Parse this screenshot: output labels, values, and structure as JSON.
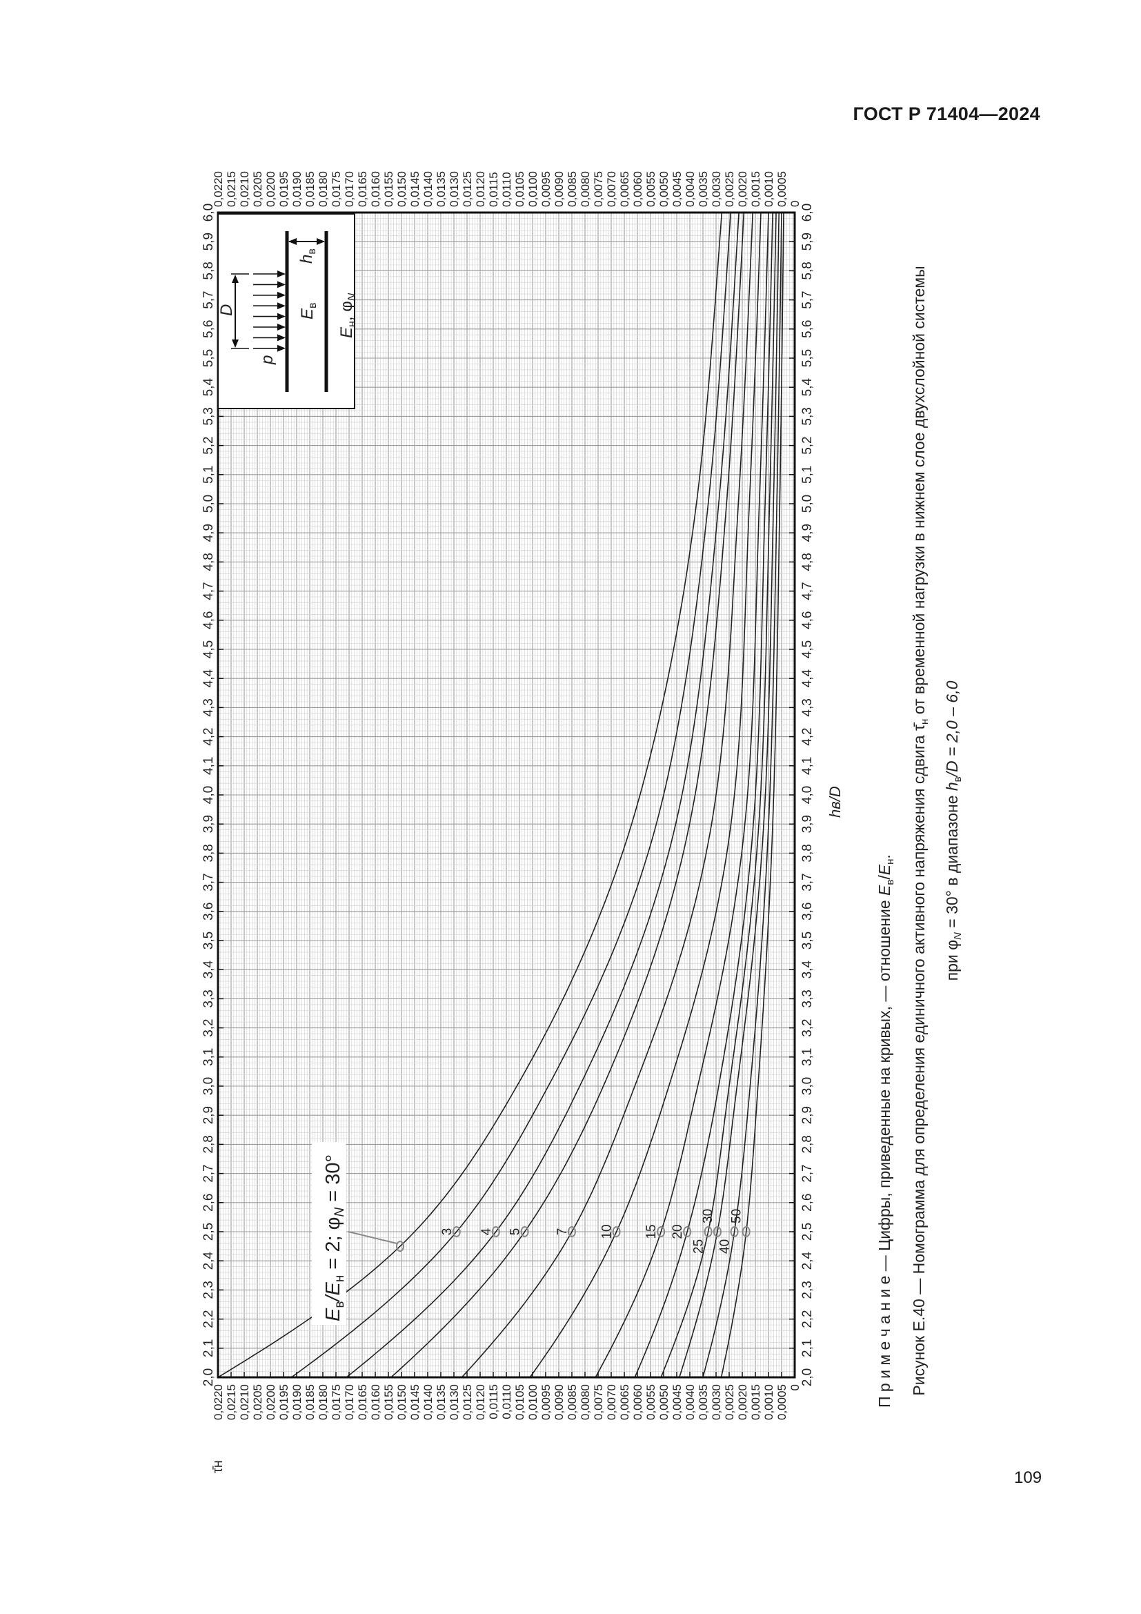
{
  "header": {
    "standard": "ГОСТ Р 71404—2024"
  },
  "page_number": "109",
  "note": {
    "label": "П р и м е ч а н и е",
    "text": " — Цифры, приведенные на кривых, — отношение ",
    "e1": "E",
    "s1": "в",
    "slash": "/",
    "e2": "E",
    "s2": "н",
    "end": "."
  },
  "caption": {
    "line1_a": "Рисунок Е.40 — Номограмма для определения единичного активного напряжения сдвига ",
    "tau": "τ̄",
    "tau_sub": "н",
    "line1_b": " от временной нагрузки в нижнем слое двухслойной системы",
    "line2_a": "при φ",
    "line2_sub": "N",
    "line2_b": " = 30°  в диапазоне ",
    "h": "h",
    "h_sub": "в",
    "line2_c": "/D = 2,0 – 6,0"
  },
  "inset": {
    "p": "p",
    "D": "D",
    "Ev": "E",
    "Ev_sub": "в",
    "En": "E",
    "En_sub": "н",
    "En_rest": ", φ",
    "En_rest_sub": "N",
    "hv": "h",
    "hv_sub": "в"
  },
  "chart_data": {
    "type": "line",
    "title": "",
    "xlabel": "hв/D",
    "ylabel": "τ̄н",
    "xlim": [
      2.0,
      6.0
    ],
    "ylim": [
      0,
      0.022
    ],
    "grid": true,
    "orientation": "rotated 90° counter-clockwise on page",
    "x_ticks": [
      "2,0",
      "2,1",
      "2,2",
      "2,3",
      "2,4",
      "2,5",
      "2,6",
      "2,7",
      "2,8",
      "2,9",
      "3,0",
      "3,1",
      "3,2",
      "3,3",
      "3,4",
      "3,5",
      "3,6",
      "3,7",
      "3,8",
      "3,9",
      "4,0",
      "4,1",
      "4,2",
      "4,3",
      "4,4",
      "4,5",
      "4,6",
      "4,7",
      "4,8",
      "4,9",
      "5,0",
      "5,1",
      "5,2",
      "5,3",
      "5,4",
      "5,5",
      "5,6",
      "5,7",
      "5,8",
      "5,9",
      "6,0"
    ],
    "y_ticks": [
      "0",
      "0,0005",
      "0,0010",
      "0,0015",
      "0,0020",
      "0,0025",
      "0,0030",
      "0,0035",
      "0,0040",
      "0,0045",
      "0,0050",
      "0,0055",
      "0,0060",
      "0,0065",
      "0,0070",
      "0,0075",
      "0,0080",
      "0,0085",
      "0,0090",
      "0,0095",
      "0,0100",
      "0,0105",
      "0,0110",
      "0,0115",
      "0,0120",
      "0,0125",
      "0,0130",
      "0,0135",
      "0,0140",
      "0,0145",
      "0,0150",
      "0,0155",
      "0,0160",
      "0,0165",
      "0,0170",
      "0,0175",
      "0,0180",
      "0,0185",
      "0,0190",
      "0,0195",
      "0,0200",
      "0,0205",
      "0,0210",
      "0,0215",
      "0,0220"
    ],
    "x": [
      2.0,
      2.5,
      3.0,
      4.0,
      5.0,
      6.0
    ],
    "series": [
      {
        "name": "2",
        "values": [
          0.022,
          0.0145,
          0.0106,
          0.0059,
          0.00375,
          0.00278
        ]
      },
      {
        "name": "3",
        "values": [
          0.0192,
          0.0129,
          0.0094,
          0.005,
          0.0033,
          0.00244
        ]
      },
      {
        "name": "4",
        "values": [
          0.0171,
          0.0114,
          0.0082,
          0.0043,
          0.0029,
          0.00213
        ]
      },
      {
        "name": "5",
        "values": [
          0.0154,
          0.0103,
          0.0073,
          0.0038,
          0.0026,
          0.00194
        ]
      },
      {
        "name": "7",
        "values": [
          0.0127,
          0.0085,
          0.0061,
          0.003,
          0.00215,
          0.0016
        ]
      },
      {
        "name": "10",
        "values": [
          0.0101,
          0.0068,
          0.0048,
          0.0023,
          0.00173,
          0.00129
        ]
      },
      {
        "name": "15",
        "values": [
          0.0076,
          0.0051,
          0.0037,
          0.0018,
          0.00135,
          0.001
        ]
      },
      {
        "name": "20",
        "values": [
          0.0061,
          0.0041,
          0.0029,
          0.0015,
          0.00113,
          0.00084
        ]
      },
      {
        "name": "25",
        "values": [
          0.0051,
          0.0033,
          0.0025,
          0.0013,
          0.00096,
          0.00071
        ]
      },
      {
        "name": "30",
        "values": [
          0.0044,
          0.00295,
          0.0022,
          0.00112,
          0.00081,
          0.0006
        ]
      },
      {
        "name": "40",
        "values": [
          0.0035,
          0.0023,
          0.0017,
          0.00095,
          0.00068,
          0.0005
        ]
      },
      {
        "name": "50",
        "values": [
          0.0028,
          0.00185,
          0.0014,
          0.0008,
          0.00057,
          0.00042
        ]
      }
    ],
    "annotation": {
      "e1": "E",
      "s1": "в",
      "e2": "/E",
      "s2": "н",
      "rest": " = 2; φ",
      "s3": "N",
      "end": " = 30°"
    }
  }
}
